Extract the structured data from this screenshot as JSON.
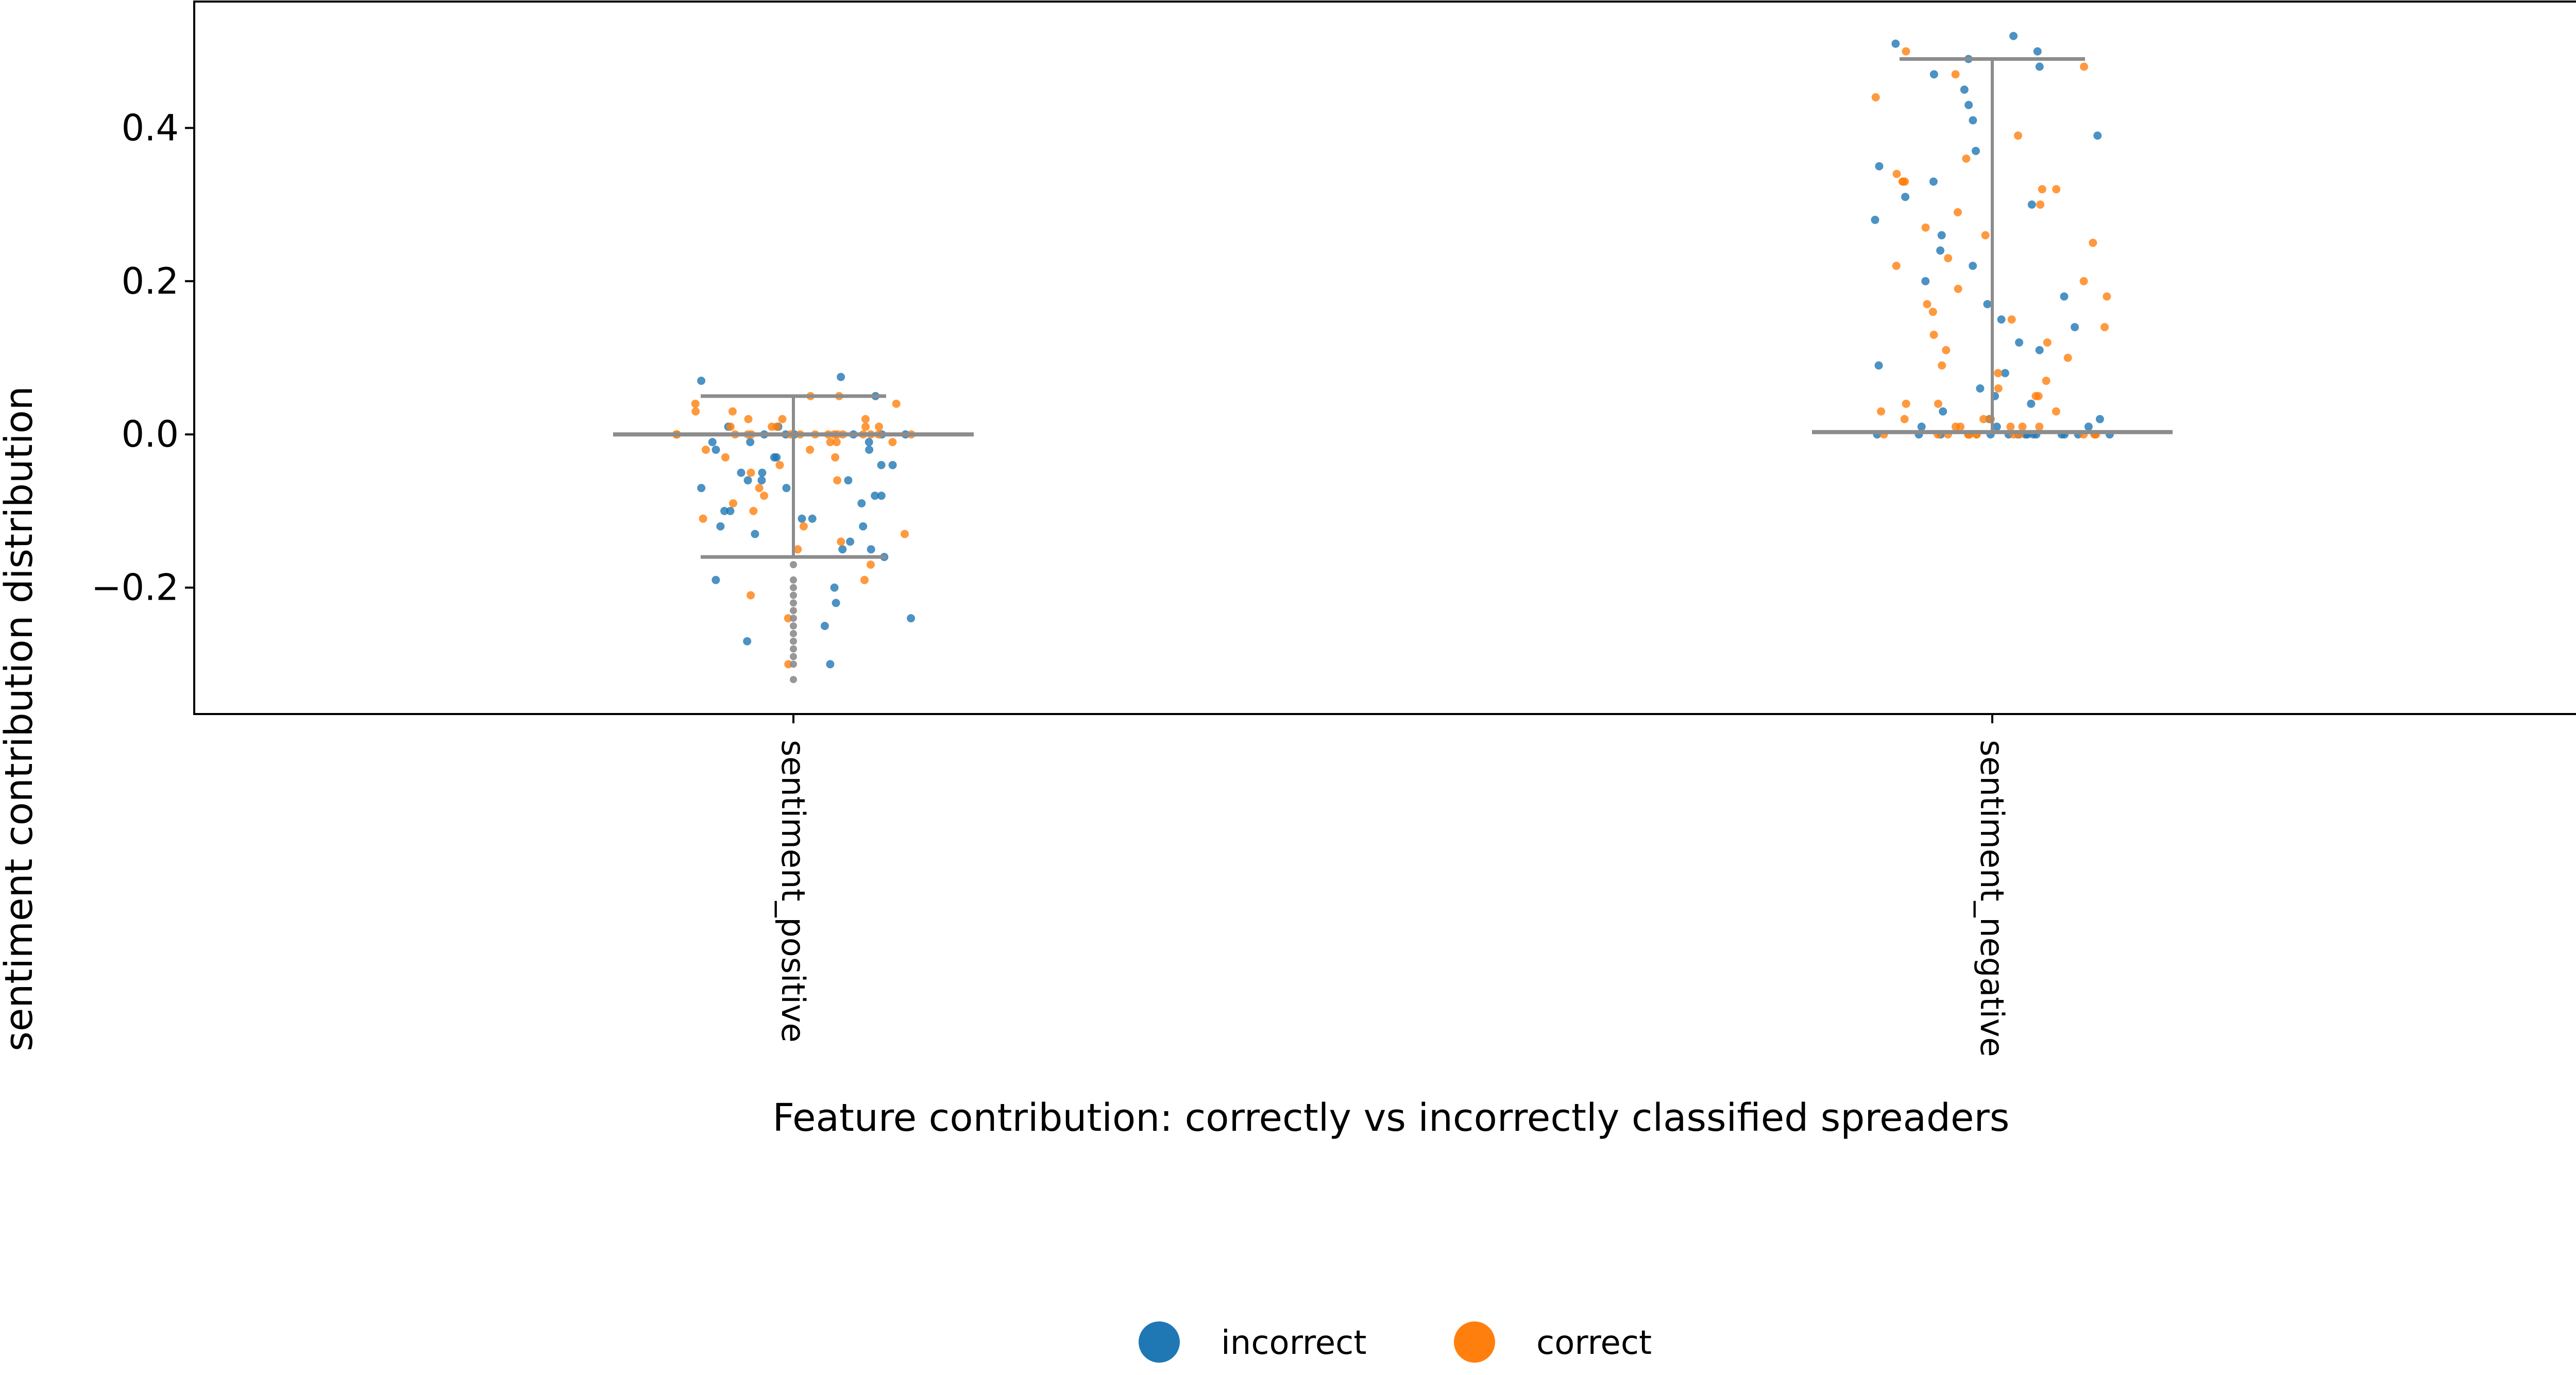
{
  "chart_data": {
    "type": "scatter",
    "subtype": "strip plot with whisker overlay",
    "xlabel": "Feature contribution: correctly vs incorrectly classified spreaders",
    "ylabel": "sentiment contribution distribution",
    "categories": [
      "sentiment_positive",
      "sentiment_negative"
    ],
    "ylim": [
      -0.365,
      0.565
    ],
    "yticks": [
      -0.2,
      0.0,
      0.2,
      0.4
    ],
    "ytick_labels": [
      "−0.2",
      "0.0",
      "0.2",
      "0.4"
    ],
    "grid": false,
    "legend_position": "bottom-center",
    "series": [
      {
        "name": "incorrect",
        "color": "#1f77b4",
        "values": {
          "sentiment_positive": [
            -0.3,
            -0.27,
            -0.25,
            -0.24,
            -0.22,
            -0.2,
            -0.19,
            -0.16,
            -0.15,
            -0.15,
            -0.14,
            -0.13,
            -0.12,
            -0.12,
            -0.11,
            -0.1,
            -0.1,
            -0.09,
            -0.08,
            -0.08,
            -0.07,
            -0.07,
            -0.06,
            -0.06,
            -0.05,
            -0.05,
            -0.04,
            -0.04,
            -0.03,
            -0.03,
            -0.02,
            -0.02,
            -0.01,
            -0.01,
            0.0,
            0.0,
            0.0,
            0.0,
            0.0,
            0.01,
            0.01,
            0.0,
            -0.01,
            -0.06,
            -0.11,
            0.05,
            0.075,
            0.07
          ],
          "sentiment_negative": [
            0.52,
            0.51,
            0.5,
            0.49,
            0.48,
            0.47,
            0.45,
            0.43,
            0.41,
            0.39,
            0.37,
            0.35,
            0.33,
            0.31,
            0.3,
            0.28,
            0.26,
            0.24,
            0.22,
            0.2,
            0.18,
            0.17,
            0.15,
            0.14,
            0.12,
            0.11,
            0.09,
            0.08,
            0.06,
            0.05,
            0.04,
            0.03,
            0.02,
            0.02,
            0.01,
            0.01,
            0.01,
            0.0,
            0.0,
            0.0,
            0.0,
            0.0,
            0.0,
            0.0,
            0.0,
            0.0,
            0.0,
            0.0,
            0.0,
            0.0,
            0.0,
            0.0
          ]
        }
      },
      {
        "name": "correct",
        "color": "#ff7f0e",
        "values": {
          "sentiment_positive": [
            0.05,
            0.05,
            0.04,
            0.04,
            0.03,
            0.03,
            0.02,
            0.02,
            0.02,
            0.01,
            0.01,
            0.01,
            0.01,
            0.01,
            0.0,
            0.0,
            0.0,
            0.0,
            0.0,
            0.0,
            0.0,
            0.0,
            0.0,
            0.0,
            0.0,
            0.0,
            0.0,
            0.0,
            0.0,
            0.0,
            -0.01,
            -0.01,
            -0.01,
            -0.02,
            -0.02,
            -0.03,
            -0.03,
            -0.04,
            -0.05,
            -0.06,
            -0.07,
            -0.08,
            -0.09,
            -0.1,
            -0.11,
            -0.12,
            -0.13,
            -0.14,
            -0.15,
            -0.17,
            -0.19,
            -0.21,
            -0.24,
            -0.3
          ],
          "sentiment_negative": [
            0.5,
            0.48,
            0.47,
            0.44,
            0.39,
            0.36,
            0.34,
            0.33,
            0.33,
            0.33,
            0.32,
            0.32,
            0.3,
            0.29,
            0.27,
            0.26,
            0.25,
            0.23,
            0.22,
            0.2,
            0.19,
            0.18,
            0.17,
            0.16,
            0.15,
            0.14,
            0.13,
            0.12,
            0.11,
            0.1,
            0.09,
            0.08,
            0.07,
            0.06,
            0.05,
            0.05,
            0.04,
            0.04,
            0.03,
            0.03,
            0.02,
            0.02,
            0.02,
            0.01,
            0.01,
            0.01,
            0.01,
            0.01,
            0.0,
            0.0,
            0.0,
            0.0,
            0.0,
            0.0,
            0.0,
            0.0,
            0.0,
            0.0,
            0.0,
            0.0,
            0.0,
            0.0
          ]
        }
      }
    ],
    "whiskers": {
      "color": "#8c8c8c",
      "sentiment_positive": {
        "upper": 0.05,
        "median": 0.0,
        "lower": -0.16
      },
      "sentiment_negative": {
        "upper": 0.49,
        "median": 0.003,
        "lower": 0.003
      }
    },
    "outliers_color": "#8c8c8c",
    "outliers": {
      "sentiment_positive": [
        -0.17,
        -0.19,
        -0.2,
        -0.21,
        -0.22,
        -0.23,
        -0.24,
        -0.25,
        -0.26,
        -0.27,
        -0.28,
        -0.29,
        -0.3,
        -0.32
      ],
      "sentiment_negative": []
    }
  },
  "legend": {
    "items": [
      {
        "label": "incorrect",
        "color": "#1f77b4"
      },
      {
        "label": "correct",
        "color": "#ff7f0e"
      }
    ]
  }
}
